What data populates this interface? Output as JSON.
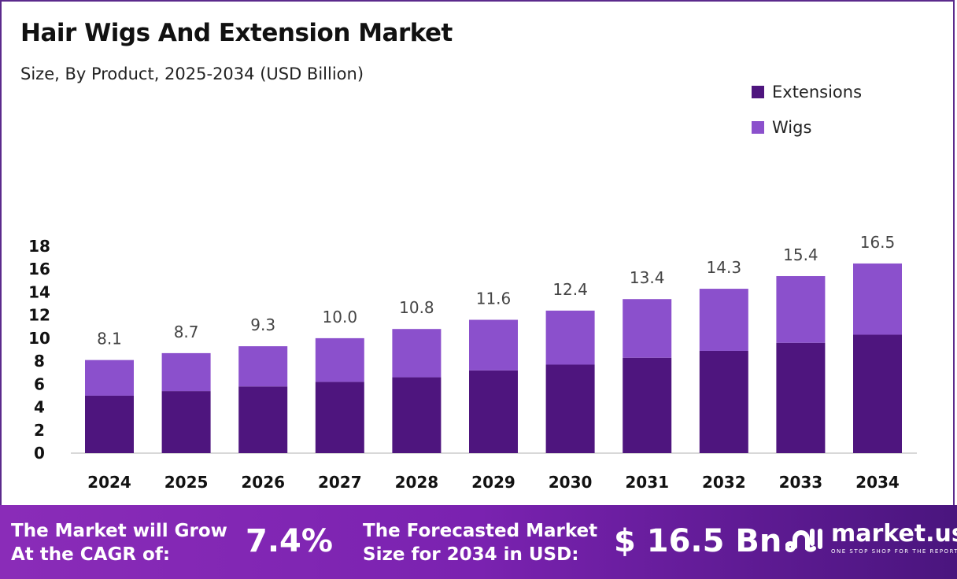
{
  "chart_data": {
    "type": "bar",
    "stacked": true,
    "title": "Hair Wigs And Extension Market",
    "subtitle": "Size, By Product, 2025-2034 (USD Billion)",
    "categories": [
      "2024",
      "2025",
      "2026",
      "2027",
      "2028",
      "2029",
      "2030",
      "2031",
      "2032",
      "2033",
      "2034"
    ],
    "series": [
      {
        "name": "Extensions",
        "color": "#4e157e",
        "values": [
          5.0,
          5.4,
          5.8,
          6.2,
          6.6,
          7.2,
          7.7,
          8.3,
          8.9,
          9.6,
          10.3
        ]
      },
      {
        "name": "Wigs",
        "color": "#8b50cc",
        "values": [
          3.1,
          3.3,
          3.5,
          3.8,
          4.2,
          4.4,
          4.7,
          5.1,
          5.4,
          5.8,
          6.2
        ]
      }
    ],
    "totals": [
      "8.1",
      "8.7",
      "9.3",
      "10.0",
      "10.8",
      "11.6",
      "12.4",
      "13.4",
      "14.3",
      "15.4",
      "16.5"
    ],
    "yticks": [
      "0",
      "2",
      "4",
      "6",
      "8",
      "10",
      "12",
      "14",
      "16",
      "18"
    ],
    "ylim": [
      0,
      18
    ],
    "grid": false,
    "legend_position": "top-right"
  },
  "footer": {
    "cagr_label_1": "The Market will Grow",
    "cagr_label_2": "At the CAGR of:",
    "cagr_value": "7.4%",
    "forecast_label_1": "The Forecasted Market",
    "forecast_label_2": "Size for 2034 in USD:",
    "forecast_value": "$ 16.5 Bn",
    "logo_name": "market.us",
    "logo_tagline": "ONE STOP SHOP FOR THE REPORTS"
  }
}
